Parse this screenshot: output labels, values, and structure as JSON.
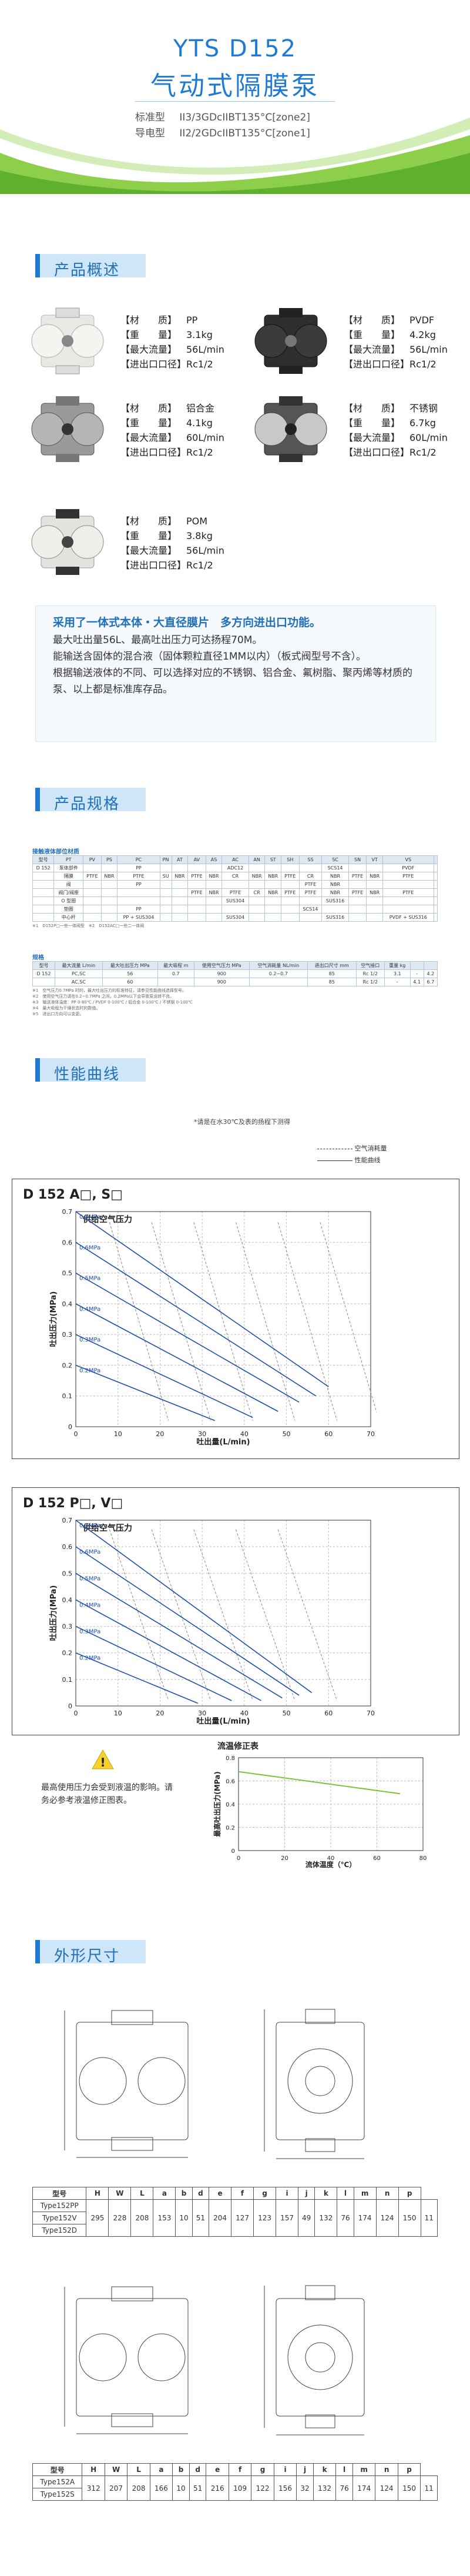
{
  "hero": {
    "title": "YTS D152",
    "subtitle": "气动式隔膜泵",
    "cert1_label": "标准型",
    "cert1_value": "II3/3GDcIIBT135°C[zone2]",
    "cert2_label": "导电型",
    "cert2_value": "II2/2GDcIIBT135°C[zone1]"
  },
  "sections": {
    "overview": "产品概述",
    "specs": "产品规格",
    "curves": "性能曲线",
    "dimensions": "外形尺寸"
  },
  "products": [
    {
      "material_label": "【材　　质】",
      "material": "PP",
      "weight_label": "【重　　量】",
      "weight": "3.1kg",
      "flow_label": "【最大流量】",
      "flow": "56L/min",
      "port_label": "【进出口口径】",
      "port": "Rc1/2"
    },
    {
      "material_label": "【材　　质】",
      "material": "PVDF",
      "weight_label": "【重　　量】",
      "weight": "4.2kg",
      "flow_label": "【最大流量】",
      "flow": "56L/min",
      "port_label": "【进出口口径】",
      "port": "Rc1/2"
    },
    {
      "material_label": "【材　　质】",
      "material": "铝合金",
      "weight_label": "【重　　量】",
      "weight": "4.1kg",
      "flow_label": "【最大流量】",
      "flow": "60L/min",
      "port_label": "【进出口口径】",
      "port": "Rc1/2"
    },
    {
      "material_label": "【材　　质】",
      "material": "不锈钢",
      "weight_label": "【重　　量】",
      "weight": "6.7kg",
      "flow_label": "【最大流量】",
      "flow": "60L/min",
      "port_label": "【进出口口径】",
      "port": "Rc1/2"
    },
    {
      "material_label": "【材　　质】",
      "material": "POM",
      "weight_label": "【重　　量】",
      "weight": "3.8kg",
      "flow_label": "【最大流量】",
      "flow": "56L/min",
      "port_label": "【进出口口径】",
      "port": "Rc1/2"
    }
  ],
  "features": {
    "headline": "采用了一体式本体・大直径膜片　多方向进出口功能。",
    "line1": "最大吐出量56L、最高吐出压力可达扬程70M。",
    "line2": "能输送含固体的混合液（固体颗粒直径1MM以内）（板式阀型号不含）。",
    "line3": "根据输送液体的不同、可以选择对应的不锈钢、铝合金、氟树脂、聚丙烯等材质的泵、以上都是标准库存品。"
  },
  "spec_table1": {
    "caption": "接触液体部位材质",
    "headers": [
      "型号",
      "PT",
      "PV",
      "PS",
      "PC",
      "PN",
      "AT",
      "AV",
      "AS",
      "AC",
      "AN",
      "ST",
      "SH",
      "SS",
      "SC",
      "SN",
      "VT",
      "VS"
    ],
    "rows": [
      [
        "D 152",
        "泵体部件",
        "",
        "",
        "PP",
        "",
        "",
        "",
        "",
        "ADC12",
        "",
        "",
        "",
        "",
        "SCS14",
        "",
        "",
        "PVDF",
        ""
      ],
      [
        "",
        "隔膜",
        "PTFE",
        "NBR",
        "PTFE",
        "SU",
        "NBR",
        "PTFE",
        "NBR",
        "CR",
        "NBR",
        "NBR",
        "PTFE",
        "CR",
        "NBR",
        "PTFE",
        "NBR",
        "PTFE",
        ""
      ],
      [
        "",
        "阀",
        "",
        "",
        "PP",
        "",
        "",
        "",
        "",
        "",
        "",
        "",
        "",
        "PTFE",
        "NBR",
        "",
        "",
        "",
        ""
      ],
      [
        "",
        "阀门/阀座",
        "",
        "",
        "",
        "",
        "",
        "PTFE",
        "NBR",
        "PTFE",
        "CR",
        "NBR",
        "PTFE",
        "PTFE",
        "NBR",
        "PTFE",
        "NBR",
        "PTFE",
        ""
      ],
      [
        "",
        "O 型圈",
        "",
        "",
        "",
        "",
        "",
        "",
        "",
        "SUS304",
        "",
        "",
        "",
        "",
        "SUS316",
        "",
        "",
        "",
        ""
      ],
      [
        "",
        "垫圈",
        "",
        "",
        "PP",
        "",
        "",
        "",
        "",
        "",
        "",
        "",
        "",
        "SCS14",
        "",
        "",
        "",
        "",
        ""
      ],
      [
        "",
        "中心杆",
        "",
        "",
        "PP + SUS304",
        "",
        "",
        "",
        "",
        "SUS304",
        "",
        "",
        "",
        "",
        "SUS316",
        "",
        "",
        "PVDF + SUS316",
        ""
      ]
    ],
    "note": "※1　D152P□一些一体阀型　※2　D152AC□一些二一体阀"
  },
  "spec_table2": {
    "caption": "规格",
    "headers": [
      "型号",
      "最大流量 L/min",
      "最大吐出压力 MPa",
      "最大吸程 m",
      "使用空气压力 MPa",
      "空气消耗量 NL/min",
      "进出口尺寸 mm",
      "空气接口",
      "重量 kg"
    ],
    "rows": [
      [
        "D 152",
        "PC,SC",
        "56",
        "0.7",
        "900",
        "0.2~0.7",
        "85",
        "Rc 1/2",
        "3.1",
        "-",
        "4.2"
      ],
      [
        "",
        "AC,SC",
        "60",
        "",
        "900",
        "",
        "85",
        "Rc 1/2",
        "-",
        "4.1",
        "6.7"
      ]
    ],
    "notes": [
      "※1　空气压力0.7MPa 时的，最大吐出压力的标准特征，请参见性能曲线选择型号。",
      "※2　使用空气压力请在0.2~0.7MPa 之间，0.2MPa以下会导致泵运转不良。",
      "※3　输送液体温度：PP 0-80℃ / PVDF 0-100℃ / 铝合金 0-100℃ / 不锈钢 0-100℃",
      "※4　最大吸程为干燥状态时的数值。",
      "※5　进出口方向可以变更。"
    ]
  },
  "curve_note": "*请是在水30℃及表的扬程下测得",
  "legend": {
    "air": "空气消耗量",
    "perf": "性能曲线"
  },
  "chart_data": [
    {
      "type": "line",
      "title": "D 152 A□, S□",
      "inner_title": "供给空气压力",
      "xlabel": "吐出量(L/min)",
      "ylabel": "吐出压力(MPa)",
      "xlim": [
        0,
        70
      ],
      "ylim": [
        0,
        0.7
      ],
      "xticks": [
        0,
        10,
        20,
        30,
        40,
        50,
        60,
        70
      ],
      "yticks": [
        0,
        0.1,
        0.2,
        0.3,
        0.4,
        0.5,
        0.6,
        0.7
      ],
      "pressure_labels": [
        "0.7MPa",
        "0.6MPa",
        "0.5MPa",
        "0.4MPa",
        "0.3MPa",
        "0.2MPa"
      ],
      "series": [
        {
          "name": "0.7MPa",
          "x": [
            0,
            60
          ],
          "y": [
            0.7,
            0.13
          ]
        },
        {
          "name": "0.6MPa",
          "x": [
            0,
            57
          ],
          "y": [
            0.6,
            0.1
          ]
        },
        {
          "name": "0.5MPa",
          "x": [
            0,
            53
          ],
          "y": [
            0.5,
            0.08
          ]
        },
        {
          "name": "0.4MPa",
          "x": [
            0,
            48
          ],
          "y": [
            0.4,
            0.05
          ]
        },
        {
          "name": "0.3MPa",
          "x": [
            0,
            42
          ],
          "y": [
            0.3,
            0.03
          ]
        },
        {
          "name": "0.2MPa",
          "x": [
            0,
            33
          ],
          "y": [
            0.2,
            0.02
          ]
        }
      ],
      "air_labels": [
        "40NL/min",
        "80NL/min",
        "120NL/min",
        "160NL/min",
        "200NL/min",
        "280NL/min"
      ]
    },
    {
      "type": "line",
      "title": "D 152 P□, V□",
      "inner_title": "供给空气压力",
      "xlabel": "吐出量(L/min)",
      "ylabel": "吐出压力(MPa)",
      "xlim": [
        0,
        70
      ],
      "ylim": [
        0,
        0.7
      ],
      "xticks": [
        0,
        10,
        20,
        30,
        40,
        50,
        60,
        70
      ],
      "yticks": [
        0,
        0.1,
        0.2,
        0.3,
        0.4,
        0.5,
        0.6,
        0.7
      ],
      "pressure_labels": [
        "0.7MPa",
        "0.6MPa",
        "0.5MPa",
        "0.4MPa",
        "0.3MPa",
        "0.2MPa"
      ],
      "series": [
        {
          "name": "0.7MPa",
          "x": [
            0,
            56
          ],
          "y": [
            0.7,
            0.05
          ]
        },
        {
          "name": "0.6MPa",
          "x": [
            0,
            53
          ],
          "y": [
            0.6,
            0.04
          ]
        },
        {
          "name": "0.5MPa",
          "x": [
            0,
            49
          ],
          "y": [
            0.5,
            0.03
          ]
        },
        {
          "name": "0.4MPa",
          "x": [
            0,
            44
          ],
          "y": [
            0.4,
            0.02
          ]
        },
        {
          "name": "0.3MPa",
          "x": [
            0,
            37
          ],
          "y": [
            0.3,
            0.02
          ]
        },
        {
          "name": "0.2MPa",
          "x": [
            0,
            29
          ],
          "y": [
            0.2,
            0.01
          ]
        }
      ],
      "air_labels": [
        "40NL/min",
        "80NL/min",
        "120NL/min",
        "160NL/min",
        "200NL/min"
      ]
    },
    {
      "type": "line",
      "title": "流温修正表",
      "xlabel": "流体温度（℃）",
      "ylabel": "最高吐出压力(MPa)",
      "xlim": [
        0,
        80
      ],
      "ylim": [
        0,
        0.8
      ],
      "xticks": [
        0,
        20,
        40,
        60,
        80
      ],
      "yticks": [
        0,
        0.2,
        0.4,
        0.6,
        0.8
      ],
      "series": [
        {
          "name": "",
          "x": [
            0,
            70
          ],
          "y": [
            0.68,
            0.49
          ]
        }
      ]
    }
  ],
  "warning_text": "最高使用压力会受到液温的影响。请务必参考液温修正图表。",
  "dim_table1": {
    "headers": [
      "型号",
      "H",
      "W",
      "L",
      "a",
      "b",
      "d",
      "e",
      "f",
      "g",
      "i",
      "j",
      "k",
      "l",
      "m",
      "n",
      "p"
    ],
    "models": [
      "Type152PP",
      "Type152V",
      "Type152D"
    ],
    "values": [
      "295",
      "228",
      "208",
      "153",
      "10",
      "51",
      "204",
      "127",
      "123",
      "157",
      "49",
      "132",
      "76",
      "174",
      "124",
      "150",
      "11"
    ]
  },
  "dim_table2": {
    "headers": [
      "型号",
      "H",
      "W",
      "L",
      "a",
      "b",
      "d",
      "e",
      "f",
      "g",
      "i",
      "j",
      "k",
      "l",
      "m",
      "n",
      "p"
    ],
    "models": [
      "Type152A",
      "Type152S"
    ],
    "values": [
      "312",
      "207",
      "208",
      "166",
      "10",
      "51",
      "216",
      "109",
      "122",
      "156",
      "32",
      "132",
      "76",
      "174",
      "124",
      "150",
      "11"
    ]
  },
  "colors": {
    "accent": "#1f7bd2",
    "curve": "#1d4fa8",
    "green": "#7bc43a"
  }
}
